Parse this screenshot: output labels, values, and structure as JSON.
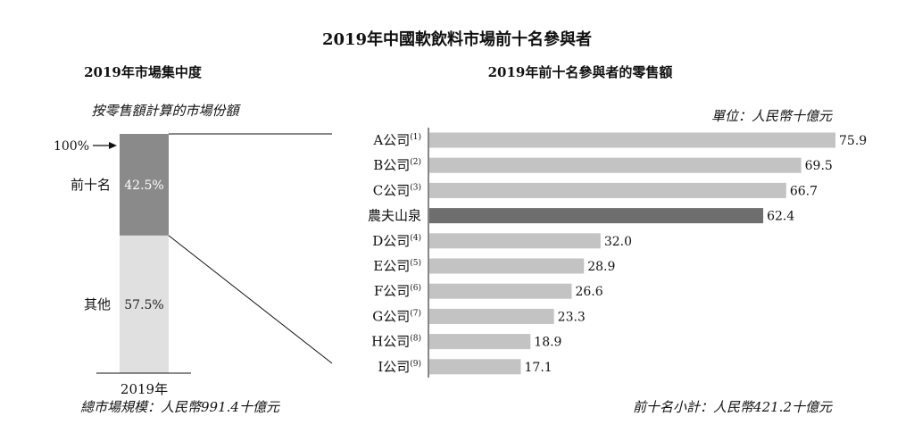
{
  "title": "2019年中國軟飲料市場前十名參與者",
  "left": {
    "subtitle": "2019年市場集中度",
    "caption": "按零售額計算的市場份額",
    "hundred_label": "100%",
    "xlabel": "2019年",
    "footer": "總市場規模：人民幣991.4十億元"
  },
  "right": {
    "subtitle": "2019年前十名參與者的零售額",
    "unit": "單位：人民幣十億元",
    "footer": "前十名小計：人民幣421.2十億元"
  },
  "colors": {
    "top": "#8a8a8a",
    "other": "#e0e0e0",
    "bar": "#c3c3c3",
    "highlight": "#6e6e6e"
  },
  "chart_data": [
    {
      "type": "bar",
      "stacked": true,
      "categories": [
        "2019年"
      ],
      "series": [
        {
          "name": "前十名",
          "values": [
            42.5
          ],
          "label": "42.5%"
        },
        {
          "name": "其他",
          "values": [
            57.5
          ],
          "label": "57.5%"
        }
      ],
      "ylim": [
        0,
        100
      ]
    },
    {
      "type": "bar",
      "orientation": "horizontal",
      "categories": [
        "A公司",
        "B公司",
        "C公司",
        "農夫山泉",
        "D公司",
        "E公司",
        "F公司",
        "G公司",
        "H公司",
        "I公司"
      ],
      "footnotes": [
        "(1)",
        "(2)",
        "(3)",
        "",
        "(4)",
        "(5)",
        "(6)",
        "(7)",
        "(8)",
        "(9)"
      ],
      "values": [
        75.9,
        69.5,
        66.7,
        62.4,
        32.0,
        28.9,
        26.6,
        23.3,
        18.9,
        17.1
      ],
      "value_labels": [
        "75.9",
        "69.5",
        "66.7",
        "62.4",
        "32.0",
        "28.9",
        "26.6",
        "23.3",
        "18.9",
        "17.1"
      ],
      "highlight": "農夫山泉",
      "xlim": [
        0,
        80
      ]
    }
  ]
}
